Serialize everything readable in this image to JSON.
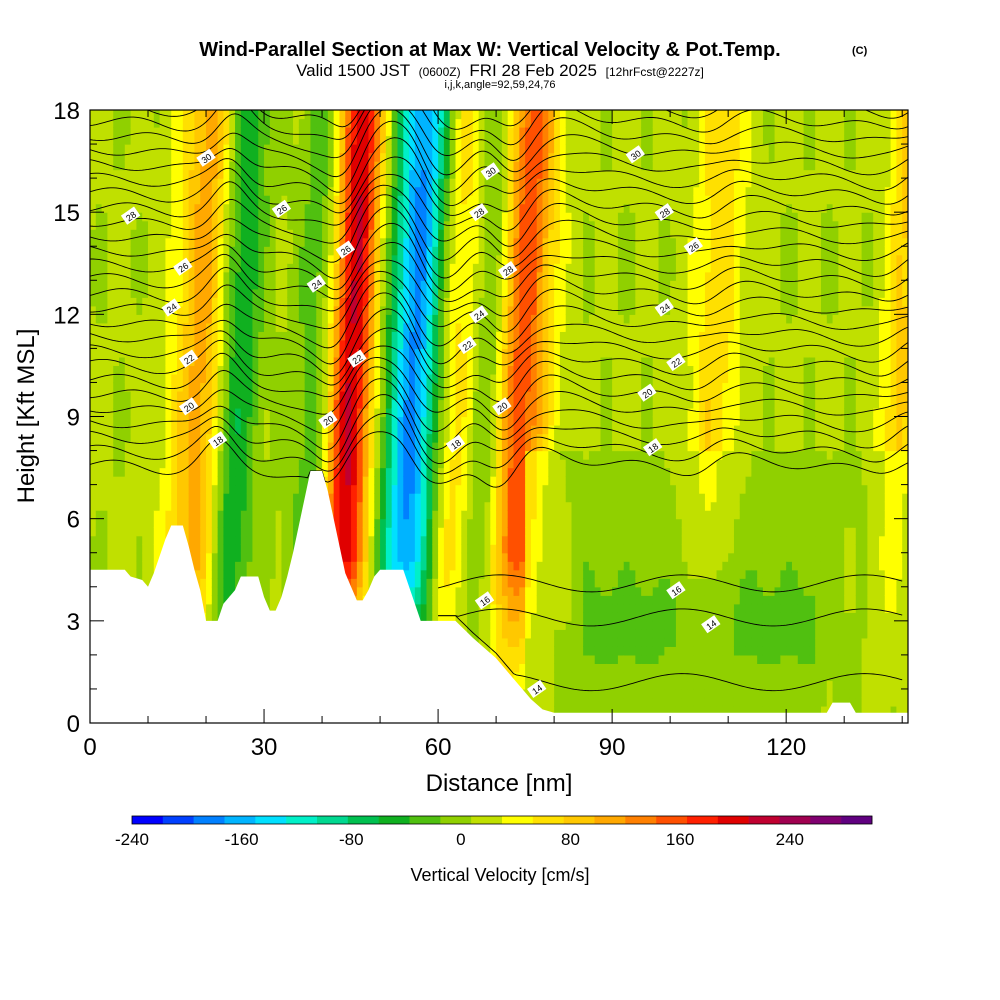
{
  "title": {
    "main": "Wind-Parallel Section at Max W: Vertical Velocity & Pot.Temp.",
    "copyright": "(C)",
    "valid_prefix": "Valid 1500 JST",
    "valid_utc": "(0600Z)",
    "valid_date": "FRI 28 Feb 2025",
    "forecast": "[12hrFcst@2227z]",
    "indices": "i,j,k,angle=92,59,24,76"
  },
  "chart_data": {
    "type": "heatmap",
    "xlabel": "Distance [nm]",
    "ylabel": "Height [Kft MSL]",
    "xlim": [
      0,
      141
    ],
    "ylim": [
      0,
      18
    ],
    "x_ticks": [
      0,
      30,
      60,
      90,
      120
    ],
    "y_ticks": [
      0,
      3,
      6,
      9,
      12,
      15,
      18
    ],
    "grid": false,
    "colorbar": {
      "label": "Vertical Velocity [cm/s]",
      "range": [
        -240,
        300
      ],
      "tick_values": [
        -240,
        -160,
        -80,
        0,
        80,
        160,
        240
      ],
      "tick_labels": [
        "-240",
        "-160",
        "-80",
        "0",
        "80",
        "160",
        "240"
      ],
      "colors": [
        "#0000ff",
        "#0040ff",
        "#0080ff",
        "#00b4ff",
        "#00e0ff",
        "#00f0c8",
        "#00d890",
        "#00c050",
        "#10b020",
        "#50c010",
        "#90d000",
        "#c0e000",
        "#ffff00",
        "#ffe000",
        "#ffc800",
        "#ffa800",
        "#ff8000",
        "#ff5000",
        "#ff2000",
        "#e00000",
        "#c00030",
        "#a00050",
        "#800070",
        "#600080"
      ]
    },
    "topography": [
      [
        0,
        4.5
      ],
      [
        6,
        4.5
      ],
      [
        7,
        4.3
      ],
      [
        9,
        4.2
      ],
      [
        10,
        4.0
      ],
      [
        11,
        4.4
      ],
      [
        12,
        4.9
      ],
      [
        13,
        5.4
      ],
      [
        14,
        5.8
      ],
      [
        16,
        5.8
      ],
      [
        17,
        5.2
      ],
      [
        18,
        4.5
      ],
      [
        19,
        3.9
      ],
      [
        20,
        3.0
      ],
      [
        22,
        3.0
      ],
      [
        23,
        3.5
      ],
      [
        25,
        3.9
      ],
      [
        26,
        4.3
      ],
      [
        29,
        4.3
      ],
      [
        30,
        3.7
      ],
      [
        31,
        3.3
      ],
      [
        32,
        3.3
      ],
      [
        33,
        3.7
      ],
      [
        34,
        4.3
      ],
      [
        35,
        5.0
      ],
      [
        36,
        5.8
      ],
      [
        37,
        6.6
      ],
      [
        38,
        7.4
      ],
      [
        40,
        7.4
      ],
      [
        41,
        6.8
      ],
      [
        42,
        6.0
      ],
      [
        43,
        5.2
      ],
      [
        44,
        4.4
      ],
      [
        45,
        4.0
      ],
      [
        46,
        3.6
      ],
      [
        47,
        3.6
      ],
      [
        48,
        3.9
      ],
      [
        49,
        4.3
      ],
      [
        50,
        4.5
      ],
      [
        54,
        4.5
      ],
      [
        55,
        4.0
      ],
      [
        56,
        3.5
      ],
      [
        57,
        3.0
      ],
      [
        63,
        3.0
      ],
      [
        66,
        2.5
      ],
      [
        68,
        2.2
      ],
      [
        70,
        1.9
      ],
      [
        72,
        1.5
      ],
      [
        74,
        1.1
      ],
      [
        76,
        0.7
      ],
      [
        78,
        0.4
      ],
      [
        80,
        0.3
      ],
      [
        127,
        0.3
      ],
      [
        128,
        0.6
      ],
      [
        131,
        0.6
      ],
      [
        132,
        0.3
      ],
      [
        141,
        0.3
      ]
    ],
    "updraft_centers": [
      {
        "x0": 19,
        "x1": 24,
        "strength": 140
      },
      {
        "x0": 44,
        "x1": 46,
        "strength": 230
      },
      {
        "x0": 62,
        "x1": 67,
        "strength": 90
      },
      {
        "x0": 73,
        "x1": 76,
        "strength": 160
      },
      {
        "x0": 107,
        "x1": 109,
        "strength": 60
      },
      {
        "x0": 140,
        "x1": 140,
        "strength": 70
      }
    ],
    "downdraft_centers": [
      {
        "x0": 24,
        "x1": 26,
        "strength": -150
      },
      {
        "x0": 40,
        "x1": 42,
        "strength": -80
      },
      {
        "x0": 55,
        "x1": 58,
        "strength": -200
      },
      {
        "x0": 68,
        "x1": 70,
        "strength": -110
      }
    ],
    "isentrope_labels": [
      {
        "text": "30",
        "x": 20,
        "y": 16.6
      },
      {
        "text": "28",
        "x": 7,
        "y": 14.9
      },
      {
        "text": "26",
        "x": 16,
        "y": 13.4
      },
      {
        "text": "24",
        "x": 14,
        "y": 12.2
      },
      {
        "text": "22",
        "x": 17,
        "y": 10.7
      },
      {
        "text": "20",
        "x": 17,
        "y": 9.3
      },
      {
        "text": "18",
        "x": 22,
        "y": 8.3
      },
      {
        "text": "26",
        "x": 33,
        "y": 15.1
      },
      {
        "text": "24",
        "x": 39,
        "y": 12.9
      },
      {
        "text": "26",
        "x": 44,
        "y": 13.9
      },
      {
        "text": "22",
        "x": 46,
        "y": 10.7
      },
      {
        "text": "20",
        "x": 41,
        "y": 8.9
      },
      {
        "text": "18",
        "x": 63,
        "y": 8.2
      },
      {
        "text": "30",
        "x": 69,
        "y": 16.2
      },
      {
        "text": "28",
        "x": 67,
        "y": 15.0
      },
      {
        "text": "28",
        "x": 72,
        "y": 13.3
      },
      {
        "text": "24",
        "x": 67,
        "y": 12.0
      },
      {
        "text": "22",
        "x": 65,
        "y": 11.1
      },
      {
        "text": "20",
        "x": 71,
        "y": 9.3
      },
      {
        "text": "16",
        "x": 68,
        "y": 3.6
      },
      {
        "text": "14",
        "x": 77,
        "y": 1.0
      },
      {
        "text": "30",
        "x": 94,
        "y": 16.7
      },
      {
        "text": "28",
        "x": 99,
        "y": 15.0
      },
      {
        "text": "26",
        "x": 104,
        "y": 14.0
      },
      {
        "text": "24",
        "x": 99,
        "y": 12.2
      },
      {
        "text": "22",
        "x": 101,
        "y": 10.6
      },
      {
        "text": "20",
        "x": 96,
        "y": 9.7
      },
      {
        "text": "18",
        "x": 97,
        "y": 8.1
      },
      {
        "text": "16",
        "x": 101,
        "y": 3.9
      },
      {
        "text": "14",
        "x": 107,
        "y": 2.9
      }
    ]
  }
}
